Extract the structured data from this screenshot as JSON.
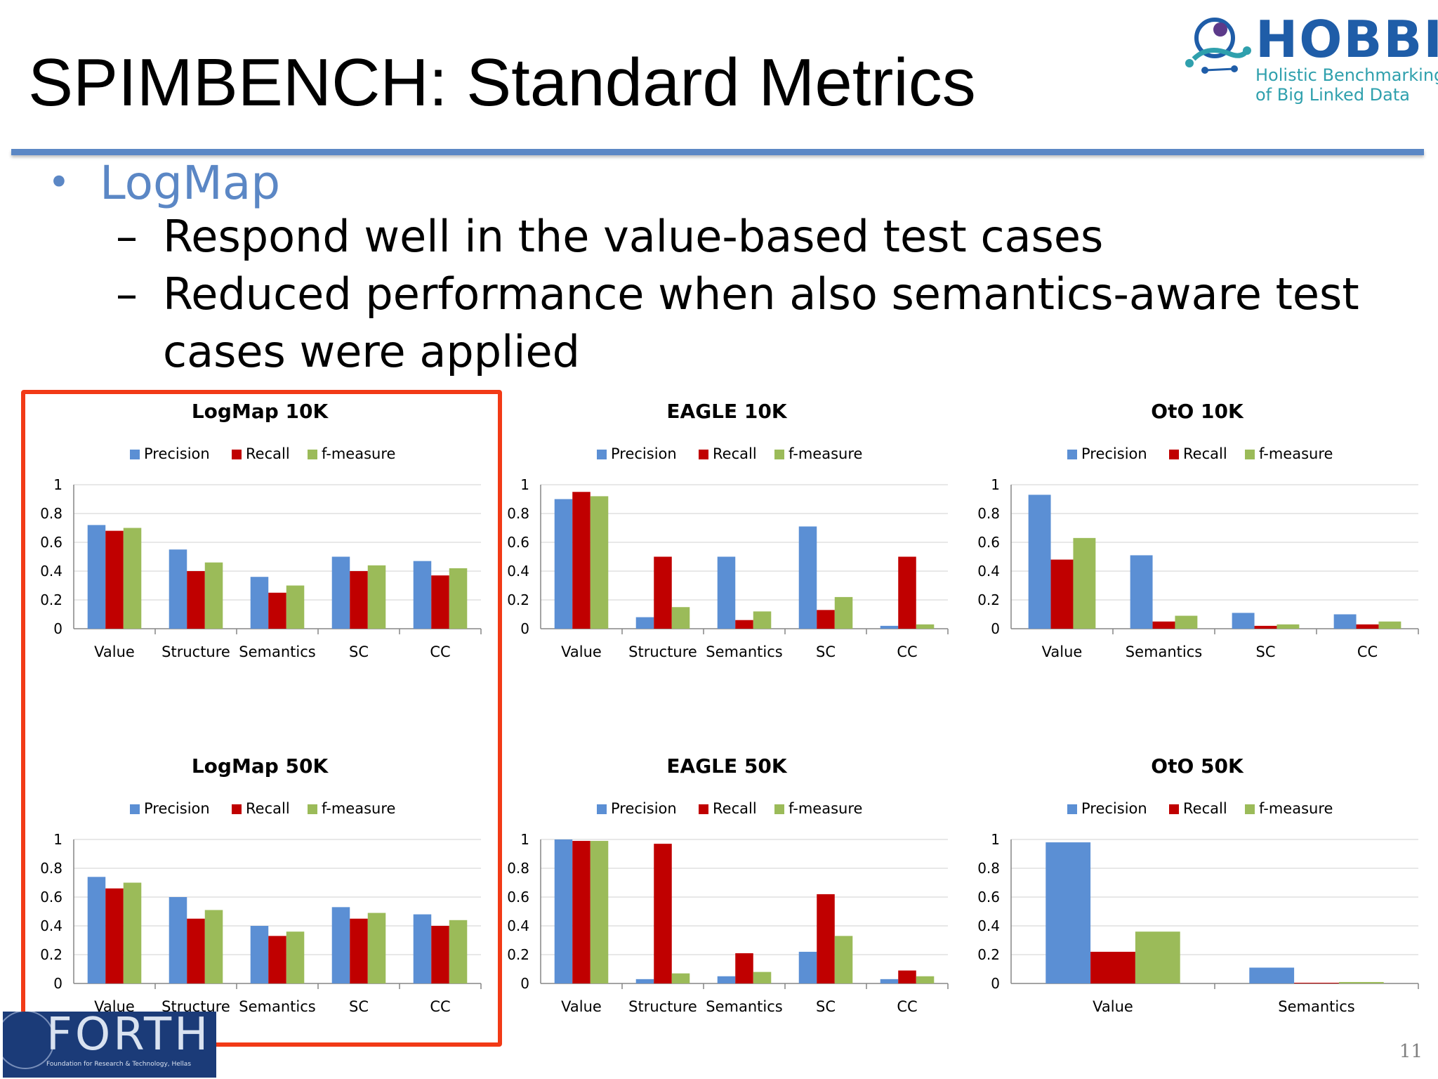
{
  "slide": {
    "title": "SPIMBENCH: Standard Metrics",
    "bullet": "LogMap",
    "subbullets": [
      "Respond well in the value-based test cases",
      "Reduced performance when also semantics-aware test",
      "cases were applied"
    ],
    "page_number": "11"
  },
  "logo": {
    "name": "HOBBIT",
    "tagline_1": "Holistic Benchmarking",
    "tagline_2": "of Big Linked Data"
  },
  "footer_logo": {
    "name": "FORTH",
    "tagline": "Foundation for Research & Technology, Hellas"
  },
  "colors": {
    "precision": "#5b8fd4",
    "recall": "#c00000",
    "fmeasure": "#9bbb59",
    "title_rule": "#5b87c5",
    "highlight": "#f23a16"
  },
  "chart_data": [
    {
      "type": "bar",
      "title": "LogMap 10K",
      "categories": [
        "Value",
        "Structure",
        "Semantics",
        "SC",
        "CC"
      ],
      "series": [
        {
          "name": "Precision",
          "values": [
            0.72,
            0.55,
            0.36,
            0.5,
            0.47
          ]
        },
        {
          "name": "Recall",
          "values": [
            0.68,
            0.4,
            0.25,
            0.4,
            0.37
          ]
        },
        {
          "name": "f-measure",
          "values": [
            0.7,
            0.46,
            0.3,
            0.44,
            0.42
          ]
        }
      ],
      "ylim": [
        0,
        1
      ],
      "yticks": [
        "0",
        "0.2",
        "0.4",
        "0.6",
        "0.8",
        "1"
      ],
      "legend": "top",
      "grid": true
    },
    {
      "type": "bar",
      "title": "EAGLE 10K",
      "categories": [
        "Value",
        "Structure",
        "Semantics",
        "SC",
        "CC"
      ],
      "series": [
        {
          "name": "Precision",
          "values": [
            0.9,
            0.08,
            0.5,
            0.71,
            0.02
          ]
        },
        {
          "name": "Recall",
          "values": [
            0.95,
            0.5,
            0.06,
            0.13,
            0.5
          ]
        },
        {
          "name": "f-measure",
          "values": [
            0.92,
            0.15,
            0.12,
            0.22,
            0.03
          ]
        }
      ],
      "ylim": [
        0,
        1
      ],
      "yticks": [
        "0",
        "0.2",
        "0.4",
        "0.6",
        "0.8",
        "1"
      ],
      "legend": "top",
      "grid": true
    },
    {
      "type": "bar",
      "title": "OtO 10K",
      "categories": [
        "Value",
        "Semantics",
        "SC",
        "CC"
      ],
      "series": [
        {
          "name": "Precision",
          "values": [
            0.93,
            0.51,
            0.11,
            0.1
          ]
        },
        {
          "name": "Recall",
          "values": [
            0.48,
            0.05,
            0.02,
            0.03
          ]
        },
        {
          "name": "f-measure",
          "values": [
            0.63,
            0.09,
            0.03,
            0.05
          ]
        }
      ],
      "ylim": [
        0,
        1
      ],
      "yticks": [
        "0",
        "0.2",
        "0.4",
        "0.6",
        "0.8",
        "1"
      ],
      "legend": "top",
      "grid": true
    },
    {
      "type": "bar",
      "title": "LogMap 50K",
      "categories": [
        "Value",
        "Structure",
        "Semantics",
        "SC",
        "CC"
      ],
      "series": [
        {
          "name": "Precision",
          "values": [
            0.74,
            0.6,
            0.4,
            0.53,
            0.48
          ]
        },
        {
          "name": "Recall",
          "values": [
            0.66,
            0.45,
            0.33,
            0.45,
            0.4
          ]
        },
        {
          "name": "f-measure",
          "values": [
            0.7,
            0.51,
            0.36,
            0.49,
            0.44
          ]
        }
      ],
      "ylim": [
        0,
        1
      ],
      "yticks": [
        "0",
        "0.2",
        "0.4",
        "0.6",
        "0.8",
        "1"
      ],
      "legend": "top",
      "grid": true
    },
    {
      "type": "bar",
      "title": "EAGLE 50K",
      "categories": [
        "Value",
        "Structure",
        "Semantics",
        "SC",
        "CC"
      ],
      "series": [
        {
          "name": "Precision",
          "values": [
            1.0,
            0.03,
            0.05,
            0.22,
            0.03
          ]
        },
        {
          "name": "Recall",
          "values": [
            0.99,
            0.97,
            0.21,
            0.62,
            0.09
          ]
        },
        {
          "name": "f-measure",
          "values": [
            0.99,
            0.07,
            0.08,
            0.33,
            0.05
          ]
        }
      ],
      "ylim": [
        0,
        1
      ],
      "yticks": [
        "0",
        "0.2",
        "0.4",
        "0.6",
        "0.8",
        "1"
      ],
      "legend": "top",
      "grid": true
    },
    {
      "type": "bar",
      "title": "OtO 50K",
      "categories": [
        "Value",
        "Semantics"
      ],
      "series": [
        {
          "name": "Precision",
          "values": [
            0.98,
            0.11
          ]
        },
        {
          "name": "Recall",
          "values": [
            0.22,
            0.005
          ]
        },
        {
          "name": "f-measure",
          "values": [
            0.36,
            0.01
          ]
        }
      ],
      "ylim": [
        0,
        1
      ],
      "yticks": [
        "0",
        "0.2",
        "0.4",
        "0.6",
        "0.8",
        "1"
      ],
      "legend": "top",
      "grid": true
    }
  ]
}
